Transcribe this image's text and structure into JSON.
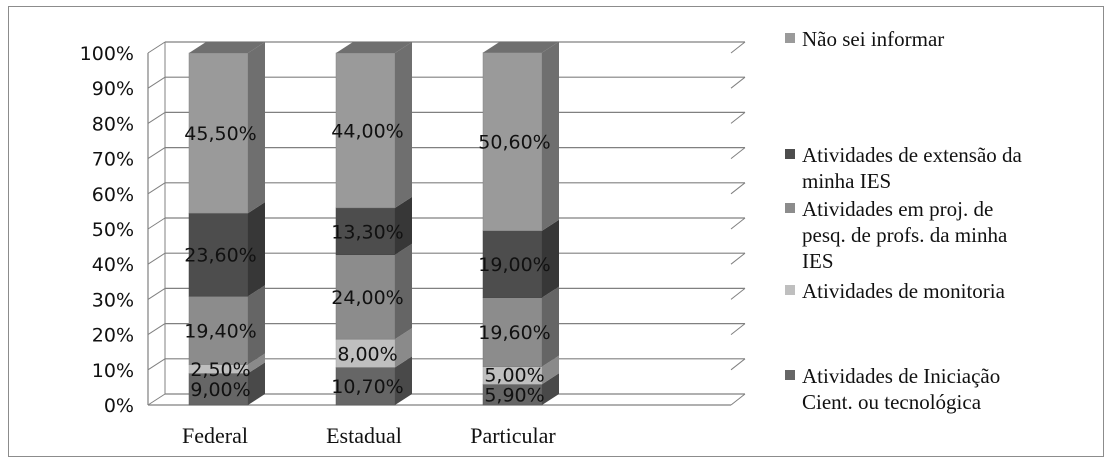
{
  "chart_data": {
    "type": "bar",
    "stacked": true,
    "three_d": true,
    "categories": [
      "Federal",
      "Estadual",
      "Particular"
    ],
    "series": [
      {
        "name": "Atividades de Iniciação Cient. ou tecnológica",
        "values": [
          9.0,
          10.7,
          5.9
        ],
        "labels": [
          "9,00%",
          "10,70%",
          "5,90%"
        ],
        "color": "#666666"
      },
      {
        "name": "Atividades de monitoria",
        "values": [
          2.5,
          8.0,
          5.0
        ],
        "labels": [
          "2,50%",
          "8,00%",
          "5,00%"
        ],
        "color": "#bfbfbf"
      },
      {
        "name": "Atividades em proj. de pesq. de profs. da minha IES",
        "values": [
          19.4,
          24.0,
          19.6
        ],
        "labels": [
          "19,40%",
          "24,00%",
          "19,60%"
        ],
        "color": "#8c8c8c"
      },
      {
        "name": "Atividades de extensão da minha IES",
        "values": [
          23.6,
          13.3,
          19.0
        ],
        "labels": [
          "23,60%",
          "13,30%",
          "19,00%"
        ],
        "color": "#4d4d4d"
      },
      {
        "name": "Não sei informar",
        "values": [
          45.5,
          44.0,
          50.6
        ],
        "labels": [
          "45,50%",
          "44,00%",
          "50,60%"
        ],
        "color": "#9a9a9a"
      }
    ],
    "ylim": [
      0,
      100
    ],
    "yticks": [
      "0%",
      "10%",
      "20%",
      "30%",
      "40%",
      "50%",
      "60%",
      "70%",
      "80%",
      "90%",
      "100%"
    ],
    "grid": true,
    "legend_position": "right",
    "legend_lines": [
      [
        "Não sei informar"
      ],
      [
        "Atividades de extensão da",
        "minha IES"
      ],
      [
        "Atividades  em proj. de",
        "pesq. de profs. da minha",
        "IES"
      ],
      [
        "Atividades de monitoria"
      ],
      [
        "Atividades de Iniciação",
        "Cient. ou tecnológica"
      ]
    ]
  }
}
